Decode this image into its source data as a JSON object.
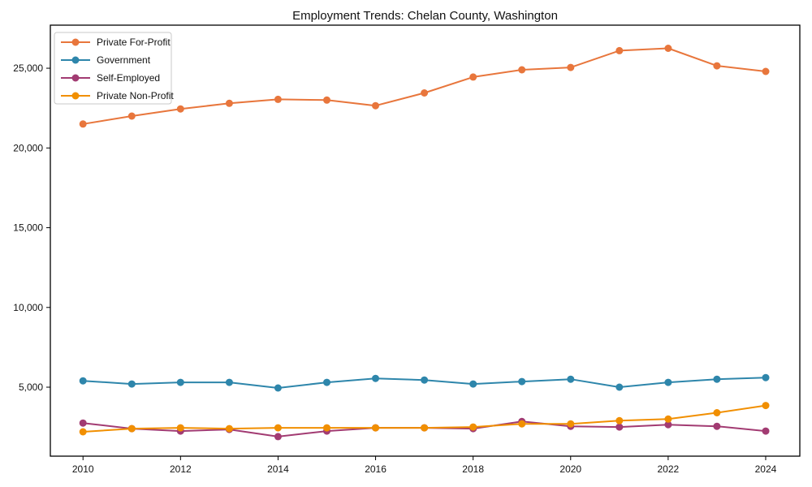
{
  "chart_data": {
    "type": "line",
    "title": "Employment Trends: Chelan County, Washington",
    "xlabel": "",
    "ylabel": "",
    "x": [
      2010,
      2011,
      2012,
      2013,
      2014,
      2015,
      2016,
      2017,
      2018,
      2019,
      2020,
      2021,
      2022,
      2023,
      2024
    ],
    "series": [
      {
        "name": "Private For-Profit",
        "color": "#E8763C",
        "values": [
          21500,
          22000,
          22450,
          22800,
          23050,
          23000,
          22650,
          23450,
          24450,
          24900,
          25050,
          26100,
          26250,
          25150,
          24800
        ]
      },
      {
        "name": "Government",
        "color": "#2E86AB",
        "values": [
          5400,
          5200,
          5300,
          5300,
          4950,
          5300,
          5550,
          5450,
          5200,
          5350,
          5500,
          5000,
          5300,
          5500,
          5600
        ]
      },
      {
        "name": "Self-Employed",
        "color": "#A23B72",
        "values": [
          2750,
          2400,
          2250,
          2350,
          1900,
          2250,
          2450,
          2450,
          2400,
          2850,
          2550,
          2500,
          2650,
          2550,
          2250
        ]
      },
      {
        "name": "Private Non-Profit",
        "color": "#F18F01",
        "values": [
          2200,
          2400,
          2450,
          2400,
          2450,
          2450,
          2450,
          2450,
          2500,
          2700,
          2700,
          2900,
          3000,
          3400,
          3850
        ]
      }
    ],
    "xticks": [
      2010,
      2012,
      2014,
      2016,
      2018,
      2020,
      2022,
      2024
    ],
    "yticks": [
      5000,
      10000,
      15000,
      20000,
      25000
    ],
    "ytick_labels": [
      "5,000",
      "10,000",
      "15,000",
      "20,000",
      "25,000"
    ],
    "xlim": [
      2009.33,
      2024.7
    ],
    "ylim": [
      675,
      27700
    ],
    "grid": false,
    "legend_position": "upper-left",
    "axis_color": "#000000",
    "legend_border_color": "#c8c8c8",
    "background_color": "#ffffff"
  }
}
